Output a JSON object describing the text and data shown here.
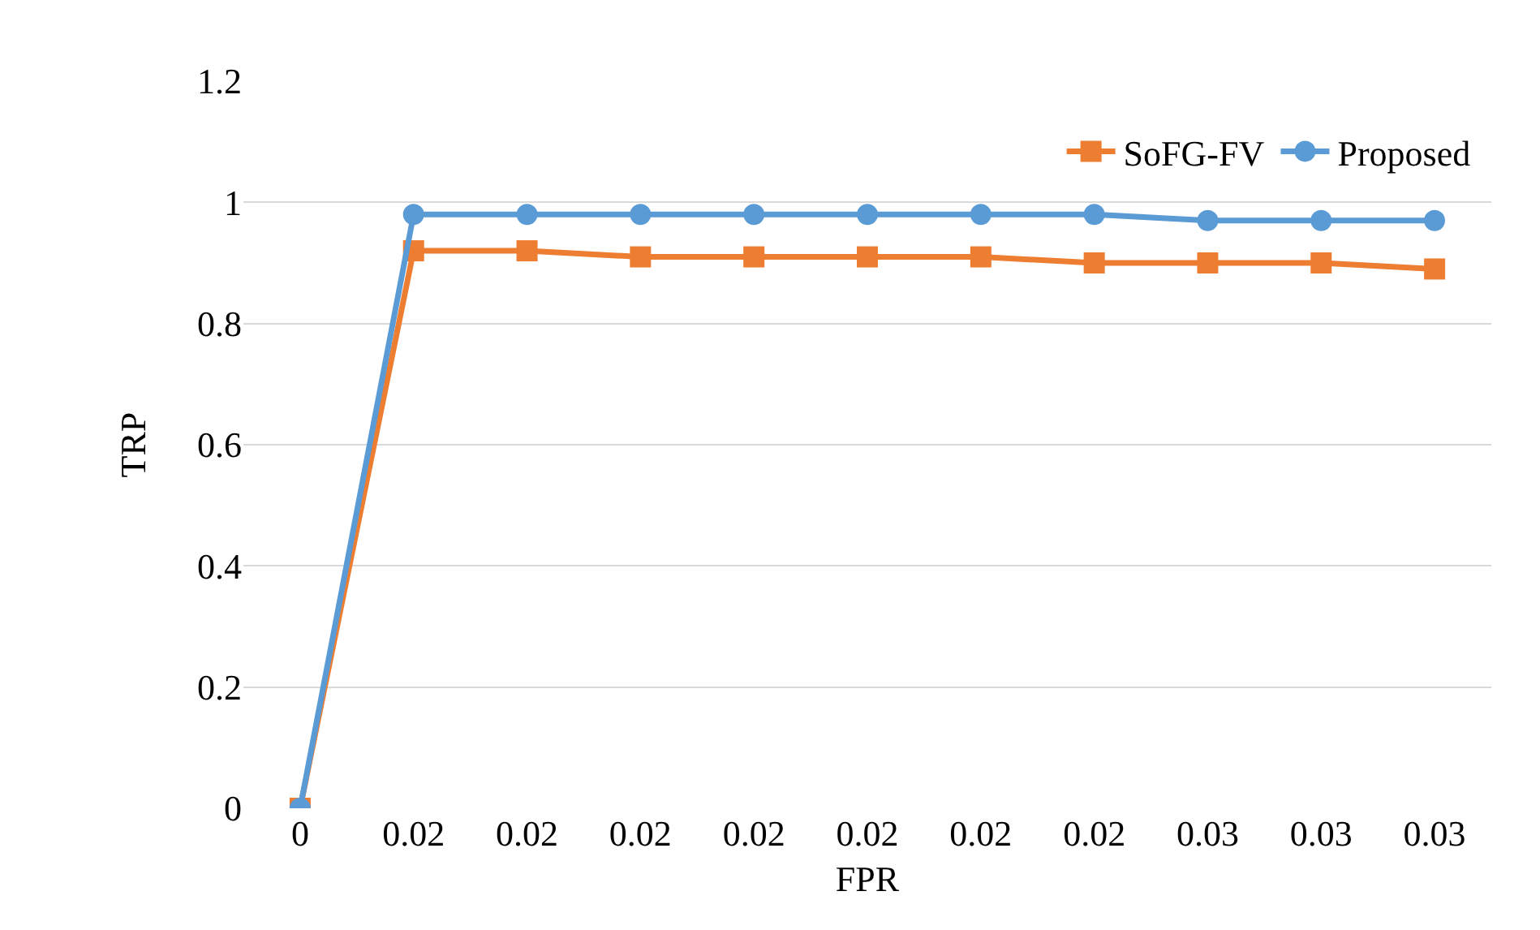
{
  "chart_data": {
    "type": "line",
    "xlabel": "FPR",
    "ylabel": "TRP",
    "categories": [
      "0",
      "0.02",
      "0.02",
      "0.02",
      "0.02",
      "0.02",
      "0.02",
      "0.02",
      "0.03",
      "0.03",
      "0.03"
    ],
    "series": [
      {
        "name": "SoFG-FV",
        "color": "#ed7d31",
        "marker": "square",
        "values": [
          0,
          0.92,
          0.92,
          0.91,
          0.91,
          0.91,
          0.91,
          0.9,
          0.9,
          0.9,
          0.89
        ]
      },
      {
        "name": "Proposed",
        "color": "#5b9bd5",
        "marker": "circle",
        "values": [
          0,
          0.98,
          0.98,
          0.98,
          0.98,
          0.98,
          0.98,
          0.98,
          0.97,
          0.97,
          0.97
        ]
      }
    ],
    "ylim": [
      0,
      1.2
    ],
    "yticks": [
      0,
      0.2,
      0.4,
      0.6,
      0.8,
      1,
      1.2
    ],
    "grid": "y",
    "legend": "top right",
    "line_style": "solid"
  }
}
